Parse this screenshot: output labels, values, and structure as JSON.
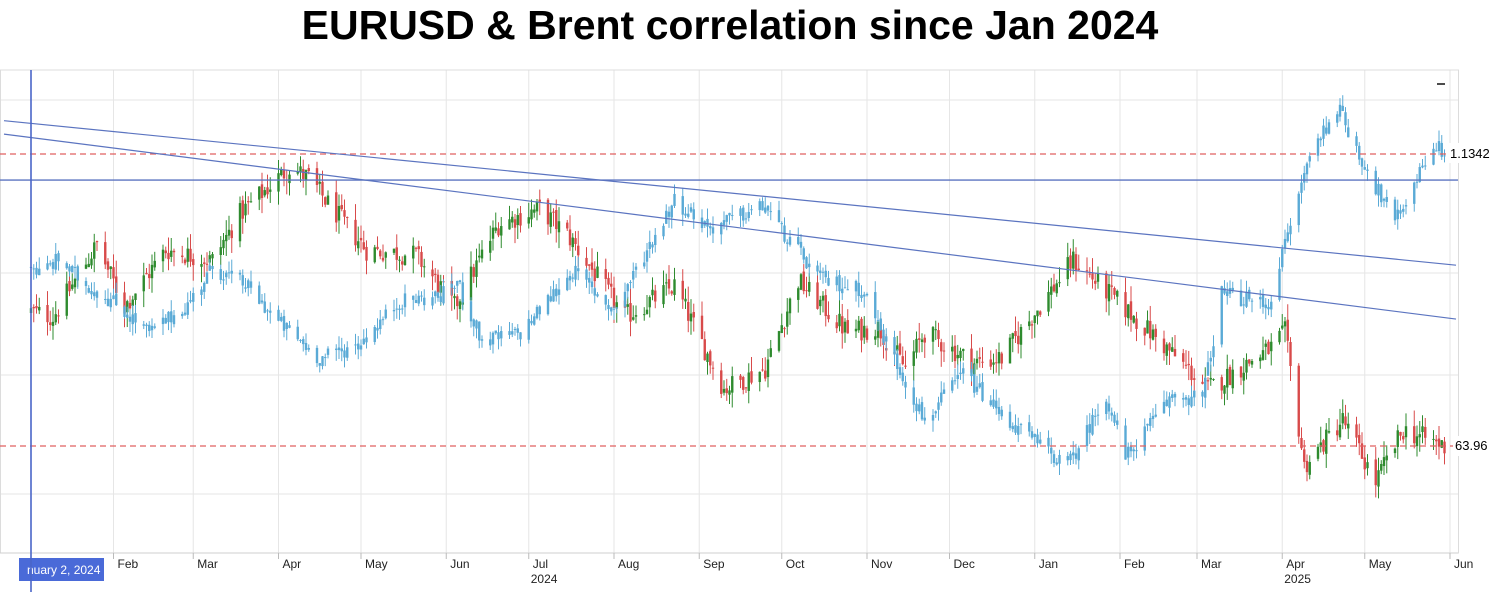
{
  "chart_data": {
    "type": "candlestick",
    "title": "EURUSD & Brent correlation since Jan 2024",
    "x_tick_labels": [
      "Feb",
      "Mar",
      "Apr",
      "May",
      "Jun",
      "Jul",
      "Aug",
      "Sep",
      "Oct",
      "Nov",
      "Dec",
      "Jan",
      "Feb",
      "Mar",
      "Apr",
      "May",
      "Jun"
    ],
    "x_year_labels": [
      "2024",
      "2025"
    ],
    "crosshair_label": "nuary 2, 2024",
    "price_labels": {
      "eurusd_last": "1.1342",
      "brent_last": "63.96"
    },
    "grid": true,
    "series": [
      {
        "name": "EURUSD",
        "color": "#5aaad6",
        "last_value": 1.1342,
        "anchors": [
          [
            "2024-01-02",
            1.095
          ],
          [
            "2024-01-05",
            1.092
          ],
          [
            "2024-01-12",
            1.097
          ],
          [
            "2024-01-22",
            1.088
          ],
          [
            "2024-02-01",
            1.082
          ],
          [
            "2024-02-14",
            1.071
          ],
          [
            "2024-02-28",
            1.081
          ],
          [
            "2024-03-08",
            1.094
          ],
          [
            "2024-03-20",
            1.088
          ],
          [
            "2024-04-01",
            1.075
          ],
          [
            "2024-04-16",
            1.062
          ],
          [
            "2024-04-30",
            1.067
          ],
          [
            "2024-05-15",
            1.082
          ],
          [
            "2024-05-30",
            1.084
          ],
          [
            "2024-06-05",
            1.089
          ],
          [
            "2024-06-14",
            1.068
          ],
          [
            "2024-06-28",
            1.071
          ],
          [
            "2024-07-17",
            1.093
          ],
          [
            "2024-08-01",
            1.079
          ],
          [
            "2024-08-23",
            1.118
          ],
          [
            "2024-09-05",
            1.108
          ],
          [
            "2024-09-25",
            1.116
          ],
          [
            "2024-10-01",
            1.107
          ],
          [
            "2024-10-15",
            1.09
          ],
          [
            "2024-10-31",
            1.086
          ],
          [
            "2024-11-06",
            1.072
          ],
          [
            "2024-11-22",
            1.04
          ],
          [
            "2024-12-06",
            1.057
          ],
          [
            "2024-12-20",
            1.042
          ],
          [
            "2025-01-13",
            1.024
          ],
          [
            "2025-01-27",
            1.049
          ],
          [
            "2025-02-03",
            1.027
          ],
          [
            "2025-02-20",
            1.049
          ],
          [
            "2025-03-03",
            1.048
          ],
          [
            "2025-03-10",
            1.085
          ],
          [
            "2025-03-27",
            1.081
          ],
          [
            "2025-04-11",
            1.134
          ],
          [
            "2025-04-21",
            1.151
          ],
          [
            "2025-05-01",
            1.13
          ],
          [
            "2025-05-12",
            1.11
          ],
          [
            "2025-05-26",
            1.138
          ],
          [
            "2025-05-30",
            1.134
          ]
        ]
      },
      {
        "name": "Brent",
        "up_color": "#2e8b2e",
        "down_color": "#d84a4a",
        "last_value": 63.96,
        "anchors": [
          [
            "2024-01-02",
            77.0
          ],
          [
            "2024-01-10",
            76.5
          ],
          [
            "2024-01-26",
            83.5
          ],
          [
            "2024-02-05",
            77.5
          ],
          [
            "2024-02-20",
            83.0
          ],
          [
            "2024-03-08",
            82.0
          ],
          [
            "2024-03-18",
            86.5
          ],
          [
            "2024-04-05",
            91.0
          ],
          [
            "2024-04-12",
            90.0
          ],
          [
            "2024-04-19",
            87.5
          ],
          [
            "2024-05-03",
            83.0
          ],
          [
            "2024-05-21",
            82.5
          ],
          [
            "2024-06-04",
            77.5
          ],
          [
            "2024-06-20",
            85.5
          ],
          [
            "2024-07-05",
            87.0
          ],
          [
            "2024-07-15",
            84.5
          ],
          [
            "2024-08-05",
            76.5
          ],
          [
            "2024-08-23",
            79.5
          ],
          [
            "2024-09-10",
            69.5
          ],
          [
            "2024-09-25",
            71.5
          ],
          [
            "2024-10-07",
            80.0
          ],
          [
            "2024-10-25",
            75.0
          ],
          [
            "2024-11-05",
            75.5
          ],
          [
            "2024-11-15",
            71.5
          ],
          [
            "2024-11-22",
            75.0
          ],
          [
            "2024-12-10",
            72.0
          ],
          [
            "2024-12-20",
            72.5
          ],
          [
            "2025-01-15",
            82.0
          ],
          [
            "2025-01-27",
            79.0
          ],
          [
            "2025-02-10",
            75.5
          ],
          [
            "2025-03-05",
            69.5
          ],
          [
            "2025-03-28",
            73.5
          ],
          [
            "2025-04-02",
            75.0
          ],
          [
            "2025-04-09",
            62.0
          ],
          [
            "2025-04-23",
            66.5
          ],
          [
            "2025-05-05",
            60.5
          ],
          [
            "2025-05-15",
            65.5
          ],
          [
            "2025-05-30",
            63.96
          ]
        ]
      }
    ],
    "lines": [
      {
        "kind": "horizontal",
        "series": "EURUSD",
        "value": 1.1342,
        "style": "dashed",
        "color": "#e06060"
      },
      {
        "kind": "horizontal",
        "series": "Brent",
        "value": 63.96,
        "style": "dashed",
        "color": "#e06060"
      },
      {
        "kind": "horizontal",
        "series": "EURUSD",
        "value": 1.125,
        "style": "solid",
        "color": "#5b74c0"
      },
      {
        "kind": "trend",
        "series": "EURUSD",
        "from": [
          "2024-01-02",
          1.145
        ],
        "to": [
          "2025-06-03",
          1.095
        ],
        "color": "#5b74c0"
      },
      {
        "kind": "trend",
        "series": "EURUSD",
        "from": [
          "2024-01-02",
          1.14
        ],
        "to": [
          "2025-06-03",
          1.076
        ],
        "color": "#5b74c0"
      }
    ],
    "vertical_marker": {
      "date": "2024-01-02",
      "color": "#4a66c8"
    }
  }
}
